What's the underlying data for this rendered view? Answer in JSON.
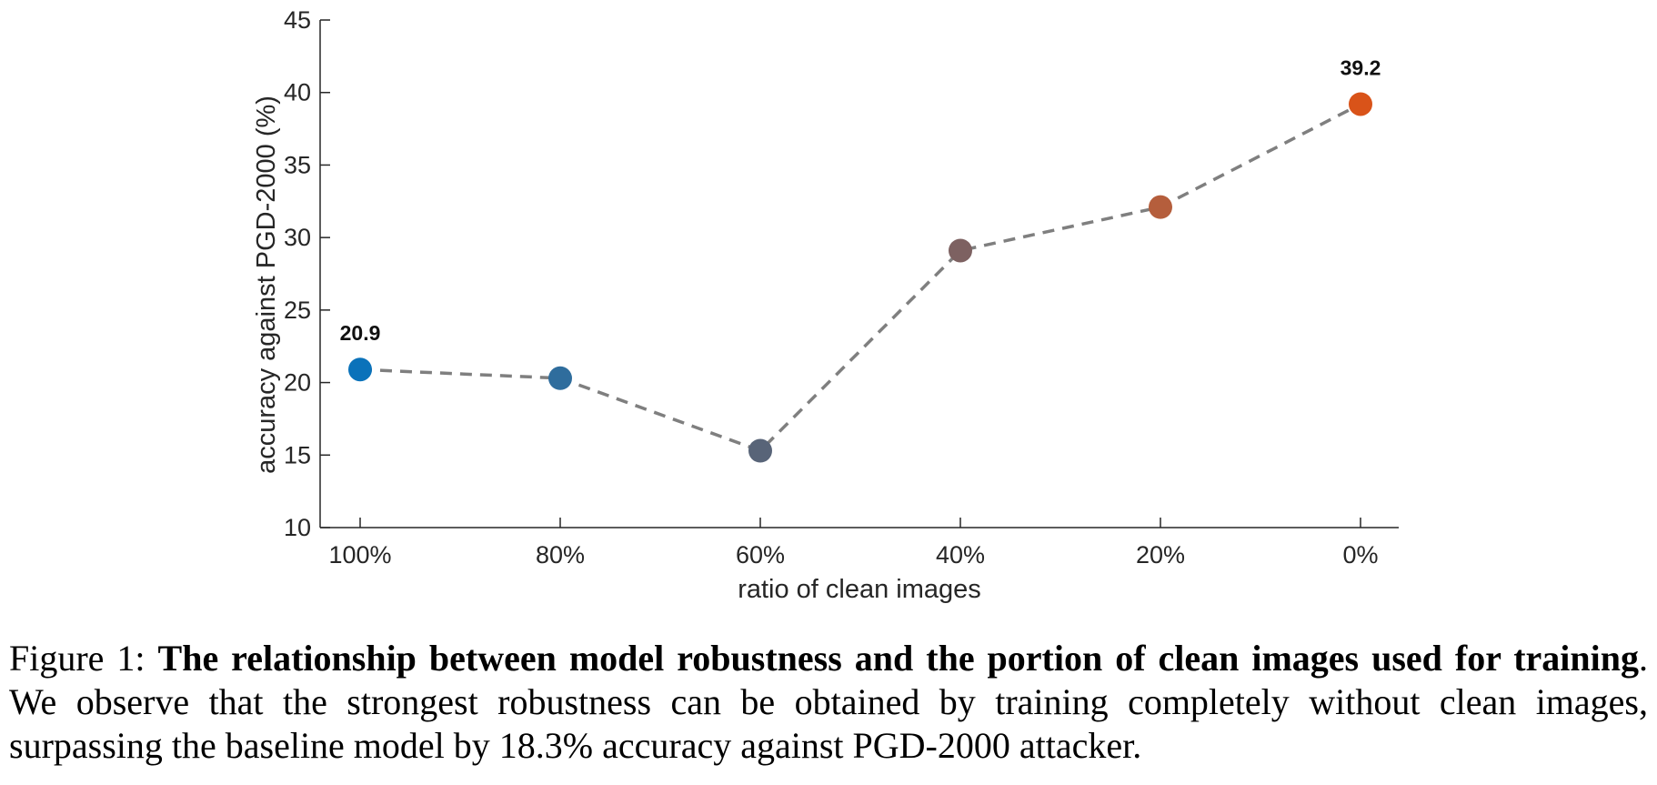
{
  "chart_data": {
    "type": "line",
    "categories": [
      "100%",
      "80%",
      "60%",
      "40%",
      "20%",
      "0%"
    ],
    "values": [
      20.9,
      20.3,
      15.3,
      29.1,
      32.1,
      39.2
    ],
    "point_colors": [
      "#0a72ba",
      "#2f6d9d",
      "#586478",
      "#7d6161",
      "#b55e3c",
      "#d95319"
    ],
    "line_color": "#7f7f7f",
    "line_style": "dashed",
    "ylabel": "accuracy against PGD-2000 (%)",
    "xlabel": "ratio of clean images",
    "ylim": [
      10,
      45
    ],
    "yticks": [
      10,
      15,
      20,
      25,
      30,
      35,
      40,
      45
    ],
    "data_labels": [
      {
        "index": 0,
        "text": "20.9"
      },
      {
        "index": 5,
        "text": "39.2"
      }
    ],
    "grid": false
  },
  "caption": {
    "label": "Figure 1: ",
    "bold": "The relationship between model robustness and the portion of clean images used for training",
    "rest": ". We observe that the strongest robustness can be obtained by training completely without clean images, surpassing the baseline model by 18.3% accuracy against PGD-2000 attacker."
  }
}
